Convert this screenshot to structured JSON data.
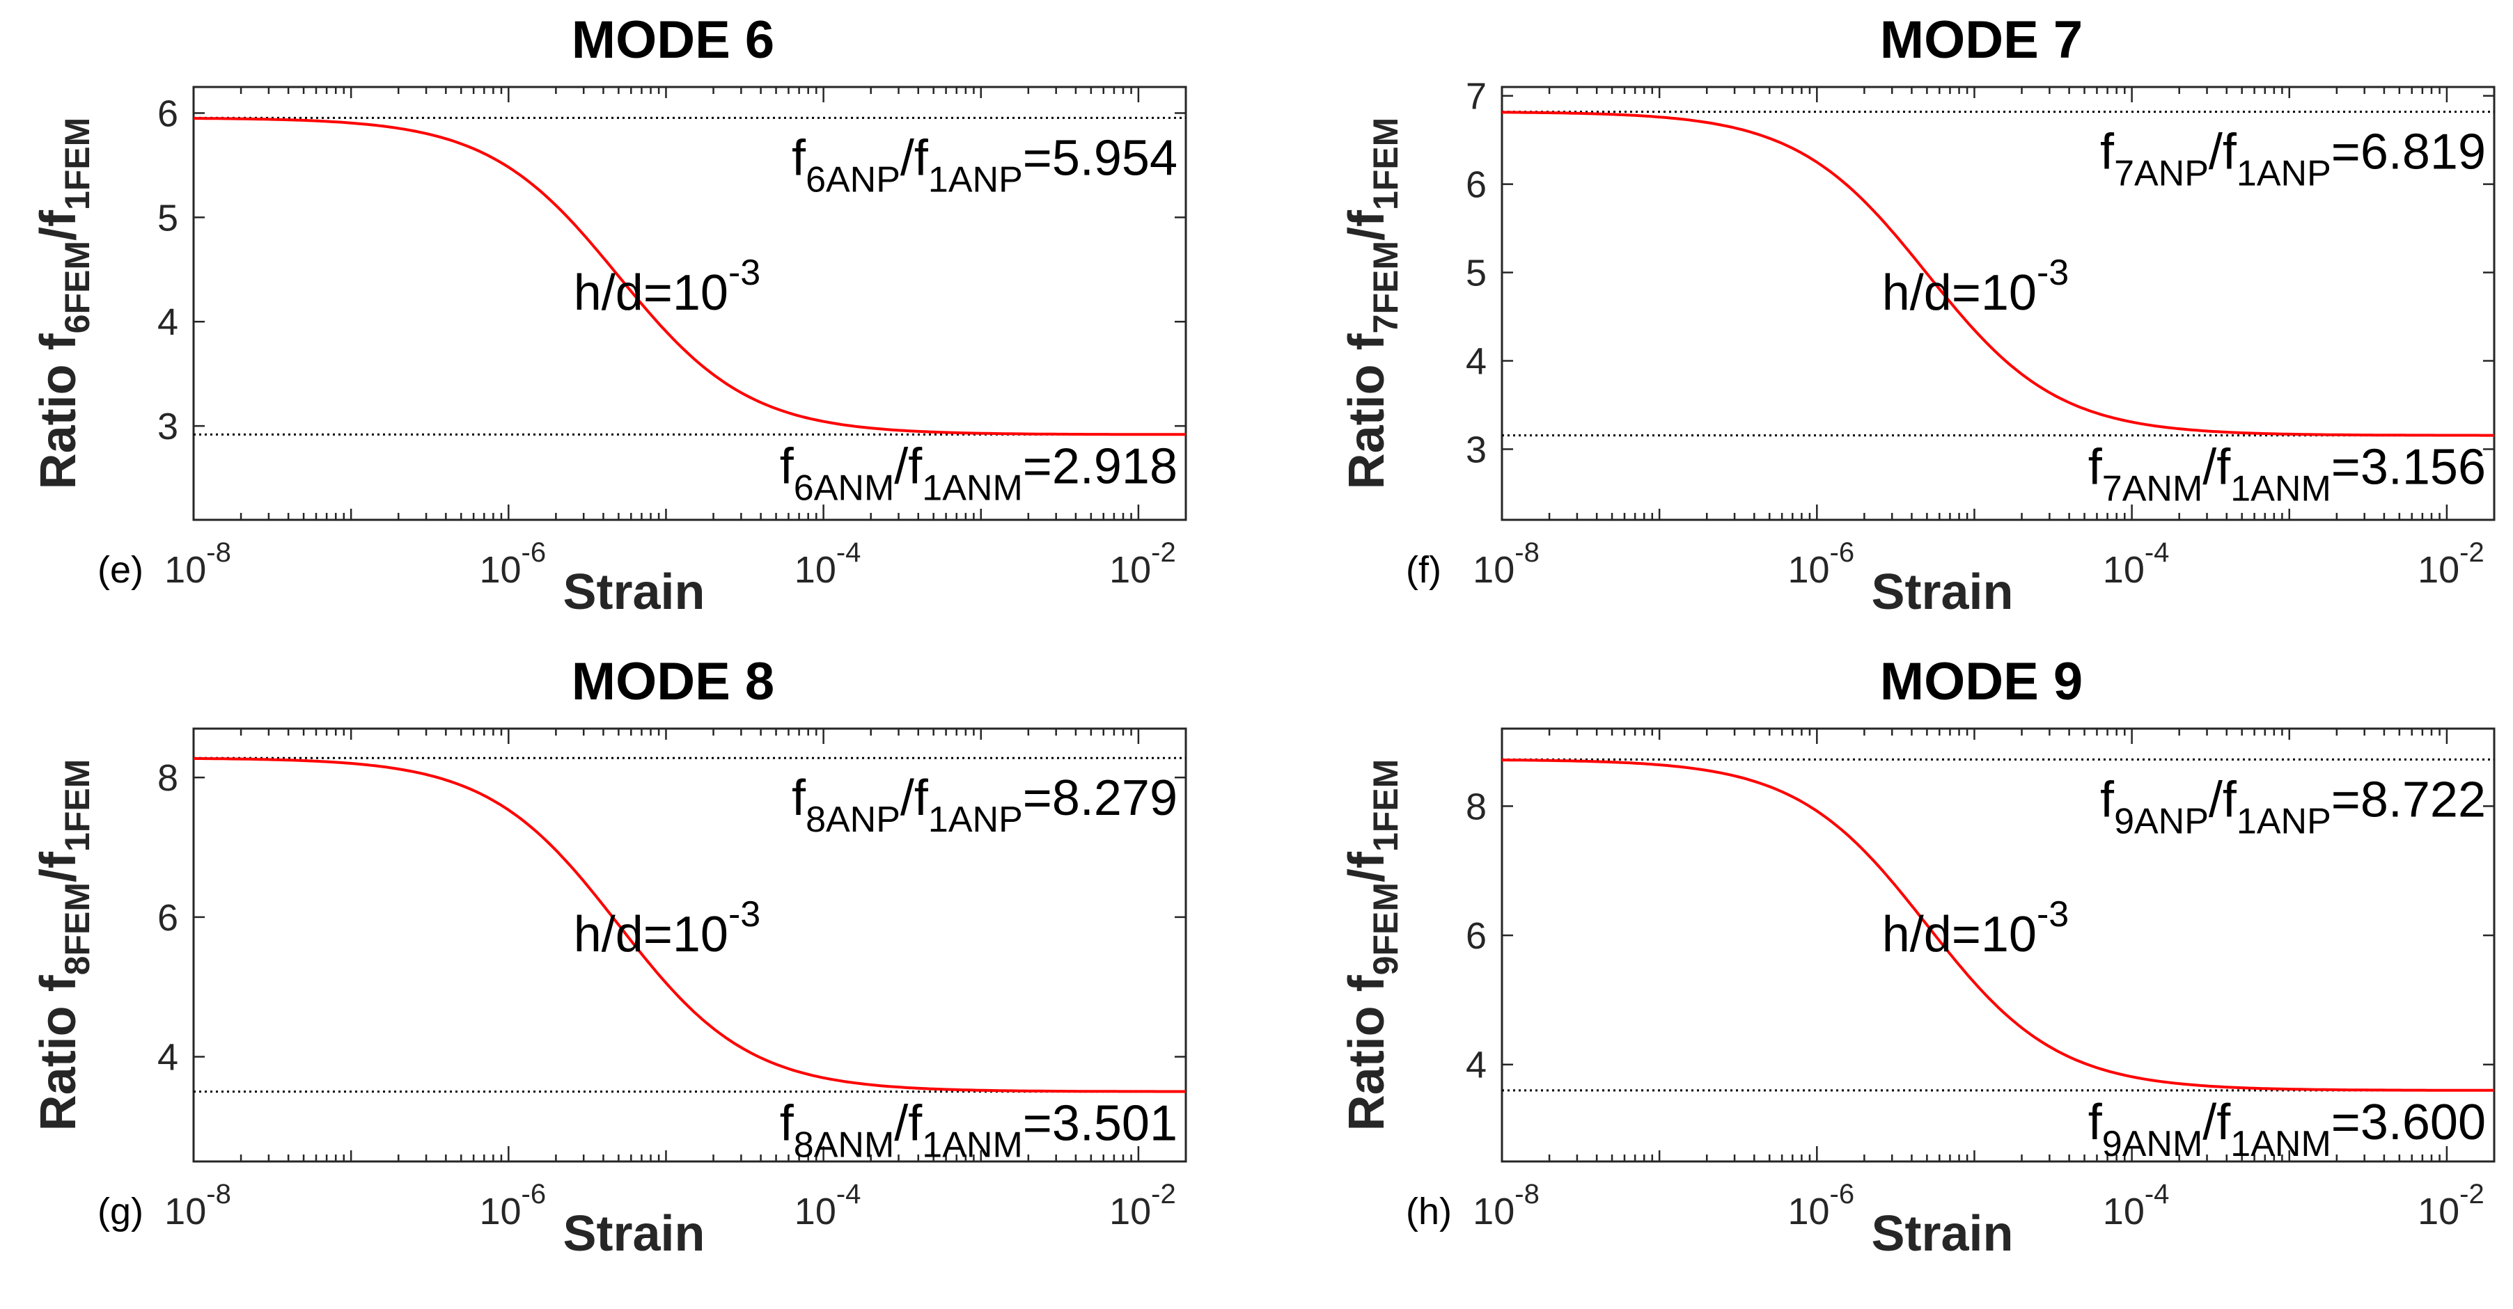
{
  "figure": {
    "background": "#ffffff",
    "curve_color": "#ff0000",
    "ref_line_color": "#000000",
    "axis_color": "#262626"
  },
  "chart_data": [
    {
      "type": "line",
      "panel_label": "(e)",
      "title": "MODE 6",
      "xlabel": "Strain",
      "xscale": "log",
      "xlim": [
        1e-08,
        0.02
      ],
      "xticks": [
        {
          "base": "10",
          "exp": "-8"
        },
        {
          "base": "10",
          "exp": "-6"
        },
        {
          "base": "10",
          "exp": "-4"
        },
        {
          "base": "10",
          "exp": "-2"
        }
      ],
      "ylabel": {
        "text": "Ratio f",
        "sub1": "6FEM",
        "mid": "/f",
        "sub2": "1FEM"
      },
      "ylim": [
        2.1,
        6.25
      ],
      "yticks": [
        "3",
        "4",
        "5",
        "6"
      ],
      "upper": 5.954,
      "lower": 2.918,
      "midpoint": 5e-06,
      "steepness": 1.05,
      "series": [
        {
          "name": "h/d=1e-3",
          "x": [
            1e-08,
            1e-07,
            3e-07,
            1e-06,
            3e-06,
            1e-05,
            3e-05,
            0.0001,
            0.0003,
            0.001,
            0.01,
            0.02
          ],
          "values": [
            5.954,
            5.93,
            5.86,
            5.63,
            5.02,
            4.02,
            3.44,
            3.07,
            2.97,
            2.93,
            2.918,
            2.918
          ]
        }
      ],
      "annotation": {
        "base": "h/d=10",
        "exp": "-3"
      },
      "upper_label": {
        "f1": "f",
        "s1": "6ANP",
        "slash": "/f",
        "s2": "1ANP",
        "eq": "=5.954"
      },
      "lower_label": {
        "f1": "f",
        "s1": "6ANM",
        "slash": "/f",
        "s2": "1ANM",
        "eq": "=2.918"
      }
    },
    {
      "type": "line",
      "panel_label": "(f)",
      "title": "MODE 7",
      "xlabel": "Strain",
      "xscale": "log",
      "xlim": [
        1e-08,
        0.02
      ],
      "xticks": [
        {
          "base": "10",
          "exp": "-8"
        },
        {
          "base": "10",
          "exp": "-6"
        },
        {
          "base": "10",
          "exp": "-4"
        },
        {
          "base": "10",
          "exp": "-2"
        }
      ],
      "ylabel": {
        "text": "Ratio f",
        "sub1": "7FEM",
        "mid": "/f",
        "sub2": "1FEM"
      },
      "ylim": [
        2.2,
        7.1
      ],
      "yticks": [
        "3",
        "4",
        "5",
        "6",
        "7"
      ],
      "upper": 6.819,
      "lower": 3.156,
      "midpoint": 5e-06,
      "steepness": 1.05,
      "series": [
        {
          "name": "h/d=1e-3",
          "x": [
            1e-08,
            1e-07,
            3e-07,
            1e-06,
            3e-06,
            1e-05,
            3e-05,
            0.0001,
            0.0003,
            0.001,
            0.01,
            0.02
          ],
          "values": [
            6.819,
            6.79,
            6.71,
            6.43,
            5.7,
            4.5,
            3.8,
            3.36,
            3.23,
            3.18,
            3.156,
            3.156
          ]
        }
      ],
      "annotation": {
        "base": "h/d=10",
        "exp": "-3"
      },
      "upper_label": {
        "f1": "f",
        "s1": "7ANP",
        "slash": "/f",
        "s2": "1ANP",
        "eq": "=6.819"
      },
      "lower_label": {
        "f1": "f",
        "s1": "7ANM",
        "slash": "/f",
        "s2": "1ANM",
        "eq": "=3.156"
      }
    },
    {
      "type": "line",
      "panel_label": "(g)",
      "title": "MODE 8",
      "xlabel": "Strain",
      "xscale": "log",
      "xlim": [
        1e-08,
        0.02
      ],
      "xticks": [
        {
          "base": "10",
          "exp": "-8"
        },
        {
          "base": "10",
          "exp": "-6"
        },
        {
          "base": "10",
          "exp": "-4"
        },
        {
          "base": "10",
          "exp": "-2"
        }
      ],
      "ylabel": {
        "text": "Ratio f",
        "sub1": "8FEM",
        "mid": "/f",
        "sub2": "1FEM"
      },
      "ylim": [
        2.5,
        8.7
      ],
      "yticks": [
        "4",
        "6",
        "8"
      ],
      "upper": 8.279,
      "lower": 3.501,
      "midpoint": 5e-06,
      "steepness": 1.05,
      "series": [
        {
          "name": "h/d=1e-3",
          "x": [
            1e-08,
            1e-07,
            3e-07,
            1e-06,
            3e-06,
            1e-05,
            3e-05,
            0.0001,
            0.0003,
            0.001,
            0.01,
            0.02
          ],
          "values": [
            8.279,
            8.24,
            8.13,
            7.76,
            6.81,
            5.24,
            4.32,
            3.73,
            3.58,
            3.52,
            3.501,
            3.501
          ]
        }
      ],
      "annotation": {
        "base": "h/d=10",
        "exp": "-3"
      },
      "upper_label": {
        "f1": "f",
        "s1": "8ANP",
        "slash": "/f",
        "s2": "1ANP",
        "eq": "=8.279"
      },
      "lower_label": {
        "f1": "f",
        "s1": "8ANM",
        "slash": "/f",
        "s2": "1ANM",
        "eq": "=3.501"
      }
    },
    {
      "type": "line",
      "panel_label": "(h)",
      "title": "MODE 9",
      "xlabel": "Strain",
      "xscale": "log",
      "xlim": [
        1e-08,
        0.02
      ],
      "xticks": [
        {
          "base": "10",
          "exp": "-8"
        },
        {
          "base": "10",
          "exp": "-6"
        },
        {
          "base": "10",
          "exp": "-4"
        },
        {
          "base": "10",
          "exp": "-2"
        }
      ],
      "ylabel": {
        "text": "Ratio f",
        "sub1": "9FEM",
        "mid": "/f",
        "sub2": "1FEM"
      },
      "ylim": [
        2.5,
        9.2
      ],
      "yticks": [
        "4",
        "6",
        "8"
      ],
      "upper": 8.722,
      "lower": 3.6,
      "midpoint": 5e-06,
      "steepness": 1.05,
      "series": [
        {
          "name": "h/d=1e-3",
          "x": [
            1e-08,
            1e-07,
            3e-07,
            1e-06,
            3e-06,
            1e-05,
            3e-05,
            0.0001,
            0.0003,
            0.001,
            0.01,
            0.02
          ],
          "values": [
            8.722,
            8.68,
            8.56,
            8.16,
            7.14,
            5.46,
            4.48,
            3.85,
            3.69,
            3.62,
            3.6,
            3.6
          ]
        }
      ],
      "annotation": {
        "base": "h/d=10",
        "exp": "-3"
      },
      "upper_label": {
        "f1": "f",
        "s1": "9ANP",
        "slash": "/f",
        "s2": "1ANP",
        "eq": "=8.722"
      },
      "lower_label": {
        "f1": "f",
        "s1": "9ANM",
        "slash": "/f",
        "s2": "1ANM",
        "eq": "=3.600"
      }
    }
  ]
}
